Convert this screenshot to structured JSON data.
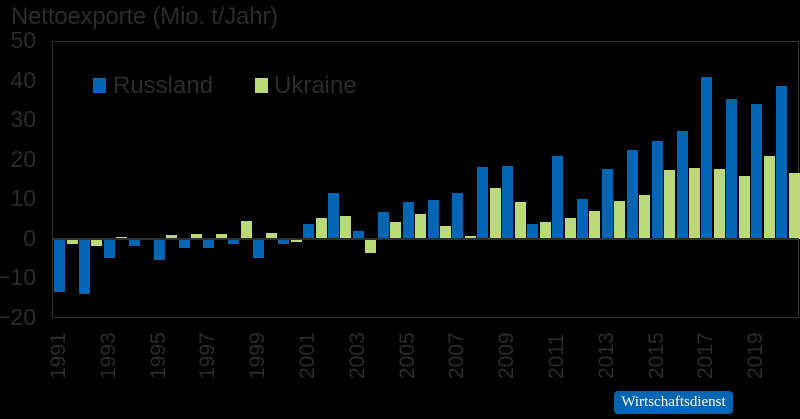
{
  "chart_data": {
    "type": "bar",
    "title": "Nettoexporte (Mio. t/Jahr)",
    "xlabel": "",
    "ylabel": "",
    "ylim": [
      -20,
      50
    ],
    "yticks": [
      50,
      40,
      30,
      20,
      10,
      0,
      -10,
      -20
    ],
    "grid": false,
    "legend_position": "top-left inside",
    "categories": [
      1991,
      1992,
      1993,
      1994,
      1995,
      1996,
      1997,
      1998,
      1999,
      2000,
      2001,
      2002,
      2003,
      2004,
      2005,
      2006,
      2007,
      2008,
      2009,
      2010,
      2011,
      2012,
      2013,
      2014,
      2015,
      2016,
      2017,
      2018,
      2019,
      2020
    ],
    "xtick_labels": [
      "1991",
      "1993",
      "1995",
      "1997",
      "1999",
      "2001",
      "2003",
      "2005",
      "2007",
      "2009",
      "2011",
      "2013",
      "2015",
      "2017",
      "2019"
    ],
    "series": [
      {
        "name": "Russland",
        "color": "#0066b3",
        "values": [
          -13.4,
          -13.9,
          -4.8,
          -1.8,
          -5.3,
          -2.2,
          -2.2,
          -1.2,
          -4.8,
          -1.2,
          3.8,
          11.6,
          2.0,
          6.8,
          9.3,
          9.9,
          11.6,
          18.2,
          18.4,
          3.8,
          21.0,
          10.1,
          17.7,
          22.5,
          24.8,
          27.3,
          40.9,
          35.4,
          34.1,
          38.6
        ]
      },
      {
        "name": "Ukraine",
        "color": "#bcd97a",
        "values": [
          -1.3,
          -1.8,
          0.5,
          0.0,
          1.0,
          1.3,
          1.3,
          4.5,
          1.5,
          -0.8,
          5.2,
          5.8,
          -3.5,
          4.3,
          6.3,
          3.3,
          0.8,
          12.9,
          9.3,
          4.3,
          5.3,
          7.1,
          9.6,
          11.1,
          17.4,
          17.9,
          17.7,
          15.9,
          21.0,
          16.7
        ]
      }
    ]
  },
  "badge": {
    "label": "Wirtschaftsdienst",
    "color": "#0066b3"
  }
}
